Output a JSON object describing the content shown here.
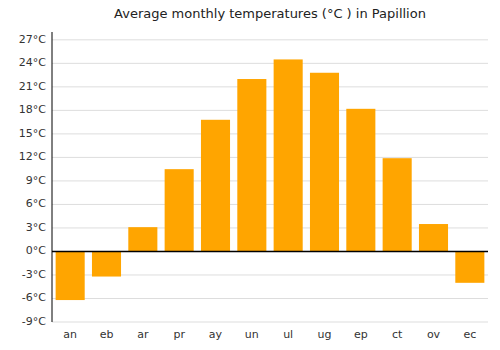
{
  "chart_data": {
    "type": "bar",
    "title": "Average monthly temperatures (°C ) in Papillion",
    "categories": [
      "an",
      "eb",
      "ar",
      "pr",
      "ay",
      "un",
      "ul",
      "ug",
      "ep",
      "ct",
      "ov",
      "ec"
    ],
    "values": [
      -6.2,
      -3.2,
      3.1,
      10.5,
      16.8,
      22.0,
      24.5,
      22.8,
      18.2,
      11.9,
      3.5,
      -4.0
    ],
    "color": "#FFA500",
    "ylim": [
      -9,
      28
    ],
    "yticks": [
      {
        "value": -9,
        "label": "-9°C"
      },
      {
        "value": -6,
        "label": "-6°C"
      },
      {
        "value": -3,
        "label": "-3°C"
      },
      {
        "value": 0,
        "label": "0°C"
      },
      {
        "value": 3,
        "label": "3°C"
      },
      {
        "value": 6,
        "label": "6°C"
      },
      {
        "value": 9,
        "label": "9°C"
      },
      {
        "value": 12,
        "label": "12°C"
      },
      {
        "value": 15,
        "label": "15°C"
      },
      {
        "value": 18,
        "label": "18°C"
      },
      {
        "value": 21,
        "label": "21°C"
      },
      {
        "value": 24,
        "label": "24°C"
      },
      {
        "value": 27,
        "label": "27°C"
      }
    ],
    "grid": true
  }
}
